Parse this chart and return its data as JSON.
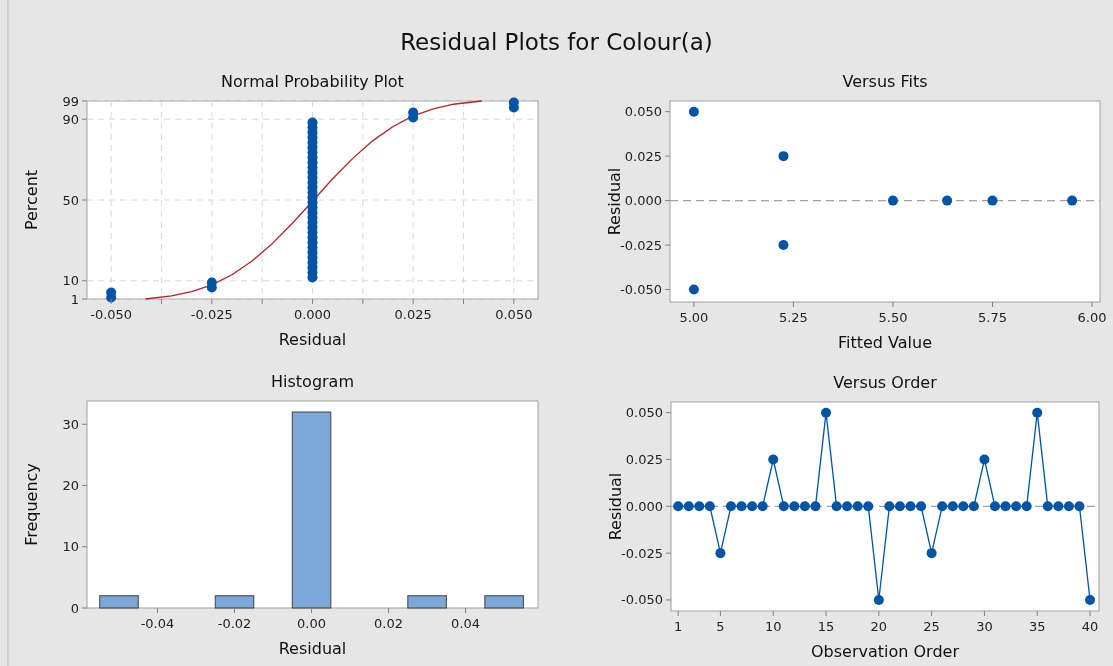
{
  "chart_data": [
    {
      "type": "scatter",
      "title": "Normal Probability Plot",
      "annotations": [
        "Residual Plots for Colour(a)"
      ],
      "xlabel": "Residual",
      "ylabel": "Percent",
      "xlim": [
        -0.056,
        0.056
      ],
      "ylim": [
        1,
        99
      ],
      "xticks": [
        {
          "value": -0.05,
          "label": "-0.050"
        },
        {
          "value": -0.0375,
          "label": null
        },
        {
          "value": -0.025,
          "label": "-0.025"
        },
        {
          "value": -0.0125,
          "label": null
        },
        {
          "value": 0,
          "label": "0.000"
        },
        {
          "value": 0.0125,
          "label": null
        },
        {
          "value": 0.025,
          "label": "0.025"
        },
        {
          "value": 0.0375,
          "label": null
        },
        {
          "value": 0.05,
          "label": "0.050"
        }
      ],
      "yticks": [
        1,
        10,
        50,
        90,
        99
      ],
      "grid": true,
      "marker": "circle",
      "series": [
        {
          "type": "scatter",
          "color": "#0054a6",
          "x": [
            -0.05,
            -0.05,
            -0.025,
            -0.025,
            0,
            0,
            0,
            0,
            0,
            0,
            0,
            0,
            0,
            0,
            0,
            0,
            0,
            0,
            0,
            0,
            0,
            0,
            0,
            0,
            0,
            0,
            0,
            0,
            0,
            0,
            0,
            0,
            0,
            0,
            0,
            0,
            0.025,
            0.025,
            0.05,
            0.05
          ],
          "values": [
            1.7,
            4.2,
            6.7,
            9.2,
            11.6,
            14.1,
            16.6,
            19.1,
            21.5,
            24.0,
            26.5,
            29.0,
            31.4,
            33.9,
            36.4,
            38.9,
            41.3,
            43.8,
            46.3,
            48.8,
            51.2,
            53.7,
            56.2,
            58.7,
            61.1,
            63.6,
            66.1,
            68.6,
            71.0,
            73.5,
            76.0,
            78.5,
            80.9,
            83.4,
            85.9,
            88.4,
            90.8,
            93.3,
            95.8,
            98.3
          ]
        },
        {
          "type": "line",
          "color": "#b22222",
          "marker": "none",
          "x": [
            -0.0415,
            -0.035,
            -0.03,
            -0.025,
            -0.02,
            -0.015,
            -0.01,
            -0.005,
            0,
            0.005,
            0.01,
            0.015,
            0.02,
            0.025,
            0.03,
            0.035,
            0.042
          ],
          "values": [
            1.0,
            2.5,
            4.6,
            8.0,
            13.0,
            19.8,
            28.4,
            38.5,
            49.4,
            60.5,
            70.6,
            79.4,
            86.4,
            91.6,
            95.1,
            97.4,
            99.0
          ]
        }
      ]
    },
    {
      "type": "scatter",
      "title": "Versus Fits",
      "xlabel": "Fitted Value",
      "ylabel": "Residual",
      "xlim": [
        4.94,
        6.02
      ],
      "ylim": [
        -0.057,
        0.056
      ],
      "xticks": [
        {
          "value": 5,
          "label": "5.00"
        },
        {
          "value": 5.25,
          "label": "5.25"
        },
        {
          "value": 5.5,
          "label": "5.50"
        },
        {
          "value": 5.75,
          "label": "5.75"
        },
        {
          "value": 6,
          "label": "6.00"
        }
      ],
      "yticks": [
        {
          "value": -0.05,
          "label": "-0.050"
        },
        {
          "value": -0.025,
          "label": "-0.025"
        },
        {
          "value": 0,
          "label": "0.000"
        },
        {
          "value": 0.025,
          "label": "0.025"
        },
        {
          "value": 0.05,
          "label": "0.050"
        }
      ],
      "marker": "circle",
      "ref_lines": [
        {
          "axis": "y",
          "value": 0,
          "color": "#a0a0a0",
          "line_style": "dashed"
        }
      ],
      "series": [
        {
          "type": "scatter",
          "color": "#0054a6",
          "x": [
            5,
            5,
            5.225,
            5.225,
            5.5,
            5.636,
            5.75,
            5.95
          ],
          "values": [
            0.05,
            -0.05,
            0.025,
            -0.025,
            0,
            0,
            0,
            0
          ]
        }
      ]
    },
    {
      "type": "histogram",
      "title": "Histogram",
      "xlabel": "Residual",
      "ylabel": "Frequency",
      "xlim": [
        -0.0583,
        0.0588
      ],
      "ylim": [
        0,
        33.8
      ],
      "xticks": [
        {
          "value": -0.04,
          "label": "-0.04"
        },
        {
          "value": -0.02,
          "label": "-0.02"
        },
        {
          "value": 0,
          "label": "0.00"
        },
        {
          "value": 0.02,
          "label": "0.02"
        },
        {
          "value": 0.04,
          "label": "0.04"
        }
      ],
      "yticks": [
        0,
        10,
        20,
        30
      ],
      "color": "#7ba7d9",
      "bins": [
        -0.055,
        -0.045,
        -0.035,
        -0.025,
        -0.015,
        -0.005,
        0.005,
        0.015,
        0.025,
        0.035,
        0.045,
        0.055
      ],
      "values": [
        2,
        0,
        0,
        2,
        0,
        32,
        0,
        0,
        2,
        0,
        2
      ]
    },
    {
      "type": "line",
      "title": "Versus Order",
      "xlabel": "Observation Order",
      "ylabel": "Residual",
      "xlim": [
        0.32,
        40.85
      ],
      "ylim": [
        -0.0559,
        0.0557
      ],
      "xticks": [
        1,
        5,
        10,
        15,
        20,
        25,
        30,
        35,
        40
      ],
      "yticks": [
        {
          "value": -0.05,
          "label": "-0.050"
        },
        {
          "value": -0.025,
          "label": "-0.025"
        },
        {
          "value": 0,
          "label": "0.000"
        },
        {
          "value": 0.025,
          "label": "0.025"
        },
        {
          "value": 0.05,
          "label": "0.050"
        }
      ],
      "marker": "circle",
      "ref_lines": [
        {
          "axis": "y",
          "value": 0,
          "color": "#a0a0a0",
          "line_style": "dashed"
        }
      ],
      "series": [
        {
          "type": "line",
          "color": "#0054a6",
          "x": [
            1,
            2,
            3,
            4,
            5,
            6,
            7,
            8,
            9,
            10,
            11,
            12,
            13,
            14,
            15,
            16,
            17,
            18,
            19,
            20,
            21,
            22,
            23,
            24,
            25,
            26,
            27,
            28,
            29,
            30,
            31,
            32,
            33,
            34,
            35,
            36,
            37,
            38,
            39,
            40
          ],
          "values": [
            0,
            0,
            0,
            0,
            -0.025,
            0,
            0,
            0,
            0,
            0.025,
            0,
            0,
            0,
            0,
            0.05,
            0,
            0,
            0,
            0,
            -0.05,
            0,
            0,
            0,
            0,
            -0.025,
            0,
            0,
            0,
            0,
            0.025,
            0,
            0,
            0,
            0,
            0.05,
            0,
            0,
            0,
            0,
            -0.05
          ]
        }
      ]
    }
  ]
}
